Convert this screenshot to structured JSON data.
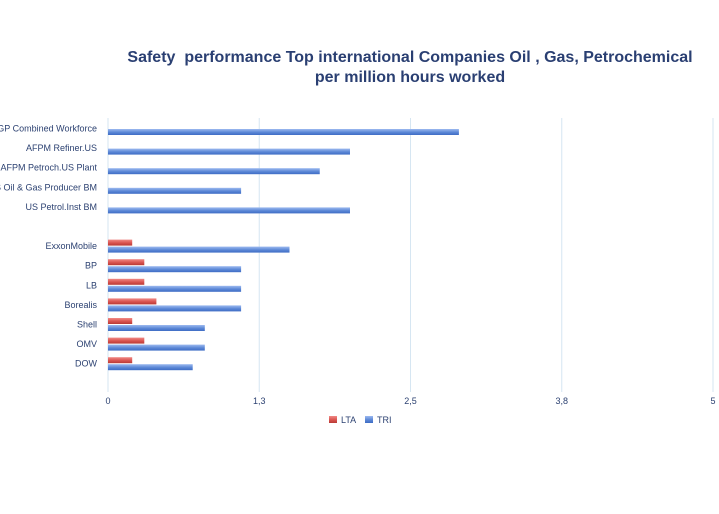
{
  "chart_data": {
    "type": "bar",
    "orientation": "horizontal",
    "title": [
      "Safety  performance Top international Companies Oil , Gas, Petrochemical",
      "per million hours worked"
    ],
    "categories": [
      "OGP Combined Workforce",
      "AFPM Refiner.US",
      "AFPM Petroch.US Plant",
      "US Oil & Gas Producer BM",
      "US Petrol.Inst BM",
      "",
      "ExxonMobile",
      "BP",
      "LB",
      "Borealis",
      "Shell",
      "OMV",
      "DOW"
    ],
    "series": [
      {
        "name": "LTA",
        "color": "#d9534f",
        "values": [
          null,
          null,
          null,
          null,
          null,
          null,
          0.2,
          0.3,
          0.3,
          0.4,
          0.2,
          0.3,
          0.2
        ]
      },
      {
        "name": "TRI",
        "color": "#5b87d6",
        "values": [
          2.9,
          2.0,
          1.75,
          1.1,
          2.0,
          null,
          1.5,
          1.1,
          1.1,
          1.1,
          0.8,
          0.8,
          0.7
        ]
      }
    ],
    "xticks": [
      "0",
      "1,3",
      "2,5",
      "3,8",
      "5"
    ],
    "xlim": [
      0,
      5
    ],
    "grid": true,
    "legend_position": "bottom-center"
  }
}
